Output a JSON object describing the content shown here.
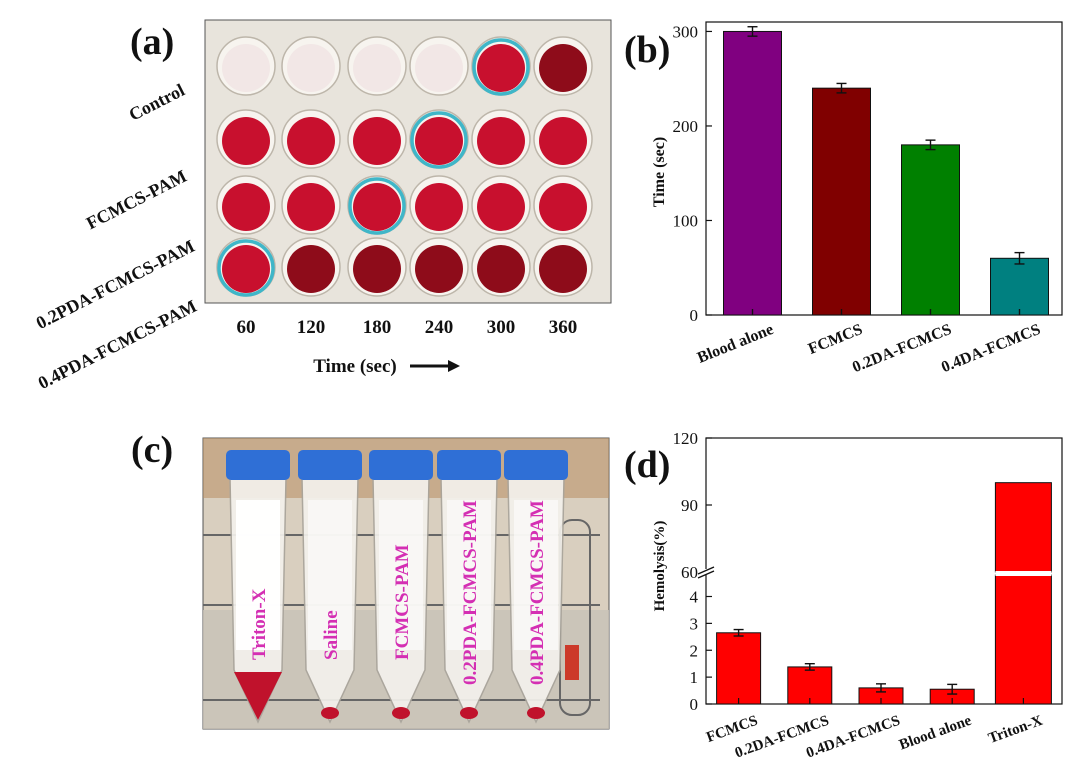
{
  "panels": {
    "a": "(a)",
    "b": "(b)",
    "c": "(c)",
    "d": "(d)"
  },
  "plate": {
    "row_labels": [
      "Control",
      "FCMCS-PAM",
      "0.2PDA-FCMCS-PAM",
      "0.4PDA-FCMCS-PAM"
    ],
    "col_labels": [
      "60",
      "120",
      "180",
      "240",
      "300",
      "360"
    ],
    "axis_label": "Time (sec)",
    "colors": {
      "clear": "#f1e6e4",
      "blood": "#c8102e",
      "dark_blood": "#8e0c1a",
      "ring": "#3fb6c8",
      "plate_bg": "#e9e6df"
    }
  },
  "tubes": {
    "labels": [
      "Triton-X",
      "Saline",
      "FCMCS-PAM",
      "0.2PDA-FCMCS-PAM",
      "0.4PDA-FCMCS-PAM"
    ],
    "colors": {
      "cap": "#2f6fd6",
      "label": "#d42fb3",
      "blood": "#c0122c"
    }
  },
  "chart_data": [
    {
      "type": "bar",
      "title": "",
      "xlabel": "",
      "ylabel": "Time (sec)",
      "categories": [
        "Blood alone",
        "FCMCS",
        "0.2DA-FCMCS",
        "0.4DA-FCMCS"
      ],
      "values": [
        300,
        240,
        180,
        60
      ],
      "errors": [
        5,
        5,
        5,
        6
      ],
      "colors": [
        "#800080",
        "#800000",
        "#008000",
        "#008080"
      ],
      "ylim": [
        0,
        310
      ],
      "yticks": [
        "0",
        "100",
        "200",
        "300"
      ]
    },
    {
      "type": "bar",
      "title": "",
      "xlabel": "",
      "ylabel": "Hemolysis(%)",
      "categories": [
        "FCMCS",
        "0.2DA-FCMCS",
        "0.4DA-FCMCS",
        "Blood alone",
        "Triton-X"
      ],
      "values": [
        2.65,
        1.38,
        0.6,
        0.55,
        100
      ],
      "errors": [
        0.12,
        0.12,
        0.15,
        0.18,
        0
      ],
      "color": "#ff0000",
      "axis_break": [
        4,
        60
      ],
      "ylim_lower": [
        0,
        4.8
      ],
      "ylim_upper": [
        60,
        120
      ],
      "yticks_lower": [
        "0",
        "1",
        "2",
        "3",
        "4"
      ],
      "yticks_upper": [
        "60",
        "90",
        "120"
      ]
    }
  ]
}
